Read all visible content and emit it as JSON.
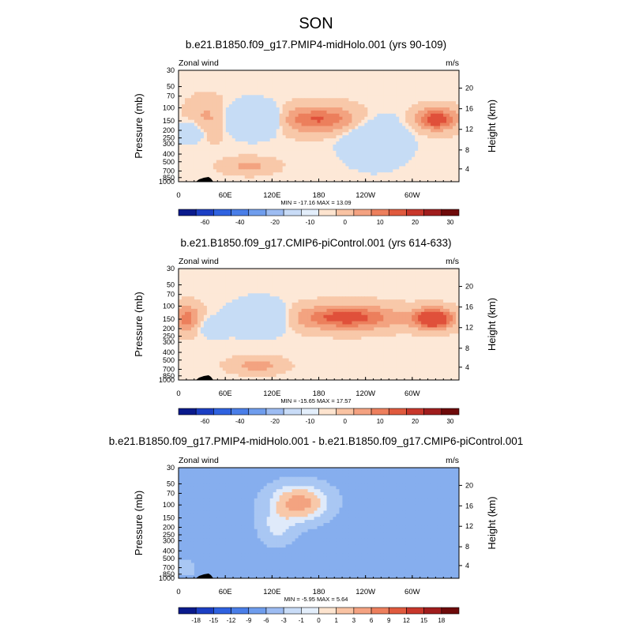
{
  "figure": {
    "main_title": "SON"
  },
  "chart_data": [
    {
      "type": "contour",
      "title": "b.e21.B1850.f09_g17.PMIP4-midHolo.001 (yrs 90-109)",
      "left_label": "Zonal wind",
      "right_label": "m/s",
      "ylabel": "Pressure (mb)",
      "y2label": "Height (km)",
      "x_ticks": [
        "0",
        "60E",
        "120E",
        "180",
        "120W",
        "60W"
      ],
      "y_ticks": [
        "30",
        "50",
        "70",
        "100",
        "150",
        "200",
        "250",
        "300",
        "400",
        "500",
        "700",
        "850",
        "1000"
      ],
      "y2_ticks": [
        "20",
        "16",
        "12",
        "8",
        "4"
      ],
      "stats": "MIN = -17.16  MAX =  13.09",
      "colorbar_labels": [
        "-60",
        "-40",
        "-20",
        "-10",
        "0",
        "10",
        "20",
        "30"
      ],
      "colorbar_colors": [
        "#0a1a8c",
        "#1c3fc4",
        "#2f62e0",
        "#4a7ee8",
        "#6f9ded",
        "#9dbcf2",
        "#c9dcf7",
        "#e3eefb",
        "#fde4cf",
        "#f9c3a3",
        "#f4a281",
        "#ed7f5d",
        "#e05a3e",
        "#c8372b",
        "#a01d1d",
        "#6e0a0a"
      ],
      "field_max": 13.09,
      "field_min": -17.16
    },
    {
      "type": "contour",
      "title": "b.e21.B1850.f09_g17.CMIP6-piControl.001 (yrs 614-633)",
      "left_label": "Zonal wind",
      "right_label": "m/s",
      "ylabel": "Pressure (mb)",
      "y2label": "Height (km)",
      "x_ticks": [
        "0",
        "60E",
        "120E",
        "180",
        "120W",
        "60W"
      ],
      "y_ticks": [
        "30",
        "50",
        "70",
        "100",
        "150",
        "200",
        "250",
        "300",
        "400",
        "500",
        "700",
        "850",
        "1000"
      ],
      "y2_ticks": [
        "20",
        "16",
        "12",
        "8",
        "4"
      ],
      "stats": "MIN = -15.65  MAX =  17.57",
      "colorbar_labels": [
        "-60",
        "-40",
        "-20",
        "-10",
        "0",
        "10",
        "20",
        "30"
      ],
      "colorbar_colors": [
        "#0a1a8c",
        "#1c3fc4",
        "#2f62e0",
        "#4a7ee8",
        "#6f9ded",
        "#9dbcf2",
        "#c9dcf7",
        "#e3eefb",
        "#fde4cf",
        "#f9c3a3",
        "#f4a281",
        "#ed7f5d",
        "#e05a3e",
        "#c8372b",
        "#a01d1d",
        "#6e0a0a"
      ],
      "field_max": 17.57,
      "field_min": -15.65
    },
    {
      "type": "contour",
      "title": "b.e21.B1850.f09_g17.PMIP4-midHolo.001 - b.e21.B1850.f09_g17.CMIP6-piControl.001",
      "left_label": "Zonal wind",
      "right_label": "m/s",
      "ylabel": "Pressure (mb)",
      "y2label": "Height (km)",
      "x_ticks": [
        "0",
        "60E",
        "120E",
        "180",
        "120W",
        "60W"
      ],
      "y_ticks": [
        "30",
        "50",
        "70",
        "100",
        "150",
        "200",
        "250",
        "300",
        "400",
        "500",
        "700",
        "850",
        "1000"
      ],
      "y2_ticks": [
        "20",
        "16",
        "12",
        "8",
        "4"
      ],
      "stats": "MIN = -5.95  MAX =  5.64",
      "colorbar_labels": [
        "-18",
        "-15",
        "-12",
        "-9",
        "-6",
        "-3",
        "-1",
        "0",
        "1",
        "3",
        "6",
        "9",
        "12",
        "15",
        "18"
      ],
      "colorbar_colors": [
        "#0a1a8c",
        "#1c3fc4",
        "#2f62e0",
        "#4a7ee8",
        "#6f9ded",
        "#9dbcf2",
        "#c9dcf7",
        "#e3eefb",
        "#fde4cf",
        "#f9c3a3",
        "#f4a281",
        "#ed7f5d",
        "#e05a3e",
        "#c8372b",
        "#a01d1d",
        "#6e0a0a"
      ],
      "field_max": 5.64,
      "field_min": -5.95
    }
  ]
}
